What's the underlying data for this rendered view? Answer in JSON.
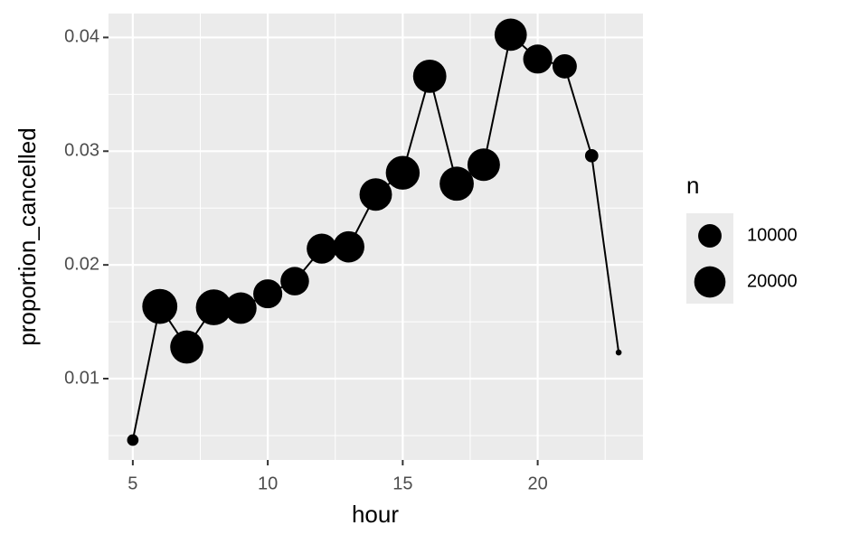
{
  "chart_data": {
    "type": "line",
    "x_label": "hour",
    "y_label": "proportion_cancelled",
    "x": [
      5,
      6,
      7,
      8,
      9,
      10,
      11,
      12,
      13,
      14,
      15,
      16,
      17,
      18,
      19,
      20,
      21,
      22,
      23
    ],
    "series": [
      {
        "color": "#000000",
        "values": [
          0.0046,
          0.01635,
          0.01278,
          0.01627,
          0.0162,
          0.01746,
          0.01857,
          0.02143,
          0.02159,
          0.02619,
          0.0281,
          0.03659,
          0.02714,
          0.02881,
          0.04024,
          0.0381,
          0.03746,
          0.0296,
          0.0123
        ],
        "sizes": [
          1953,
          25951,
          22821,
          27242,
          20312,
          16708,
          16033,
          18181,
          19956,
          21706,
          23888,
          23002,
          24426,
          21783,
          21441,
          16739,
          10933,
          2639,
          1061
        ]
      }
    ],
    "size_legend": {
      "title": "n",
      "values": [
        10000,
        20000
      ]
    },
    "xlim": [
      4.1,
      23.9
    ],
    "ylim": [
      0.00285,
      0.0421
    ],
    "xticks": [
      5,
      10,
      15,
      20
    ],
    "yticks": [
      0.01,
      0.02,
      0.03,
      0.04
    ],
    "xminor": [
      7.5,
      12.5,
      17.5,
      22.5
    ],
    "yminor": [
      0.005,
      0.015,
      0.025,
      0.035
    ],
    "grid": true
  }
}
